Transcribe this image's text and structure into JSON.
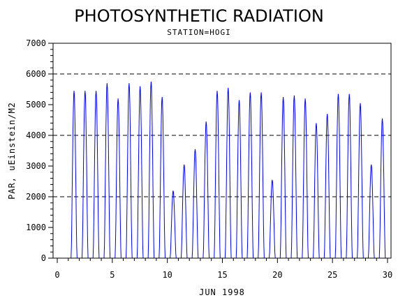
{
  "chart_data": {
    "type": "line",
    "title": "PHOTOSYNTHETIC RADIATION",
    "subtitle": "STATION=HOGI",
    "xlabel": "JUN 1998",
    "ylabel": "PAR, uEinstein/M2",
    "xlim": [
      0,
      30
    ],
    "ylim": [
      0,
      7000
    ],
    "x_ticks": [
      0,
      5,
      10,
      15,
      20,
      25,
      30
    ],
    "y_ticks": [
      0,
      1000,
      2000,
      3000,
      4000,
      5000,
      6000,
      7000
    ],
    "reference_lines": [
      2000,
      4000,
      6000
    ],
    "grid": false,
    "line_color": "#0000ff",
    "series": [
      {
        "daily_peaks": [
          {
            "day": 1,
            "peak": 5450
          },
          {
            "day": 2,
            "peak": 5450
          },
          {
            "day": 3,
            "peak": 5450
          },
          {
            "day": 4,
            "peak": 5700
          },
          {
            "day": 5,
            "peak": 5200
          },
          {
            "day": 6,
            "peak": 5700
          },
          {
            "day": 7,
            "peak": 5600
          },
          {
            "day": 8,
            "peak": 5750
          },
          {
            "day": 9,
            "peak": 5250
          },
          {
            "day": 10,
            "peak": 2200
          },
          {
            "day": 11,
            "peak": 3050
          },
          {
            "day": 12,
            "peak": 3550
          },
          {
            "day": 13,
            "peak": 4450
          },
          {
            "day": 14,
            "peak": 5450
          },
          {
            "day": 15,
            "peak": 5550
          },
          {
            "day": 16,
            "peak": 5150
          },
          {
            "day": 17,
            "peak": 5400
          },
          {
            "day": 18,
            "peak": 5400
          },
          {
            "day": 19,
            "peak": 2550
          },
          {
            "day": 20,
            "peak": 5250
          },
          {
            "day": 21,
            "peak": 5300
          },
          {
            "day": 22,
            "peak": 5200
          },
          {
            "day": 23,
            "peak": 4400
          },
          {
            "day": 24,
            "peak": 4700
          },
          {
            "day": 25,
            "peak": 5350
          },
          {
            "day": 26,
            "peak": 5350
          },
          {
            "day": 27,
            "peak": 5050
          },
          {
            "day": 28,
            "peak": 3050
          },
          {
            "day": 29,
            "peak": 4550
          }
        ]
      }
    ]
  }
}
